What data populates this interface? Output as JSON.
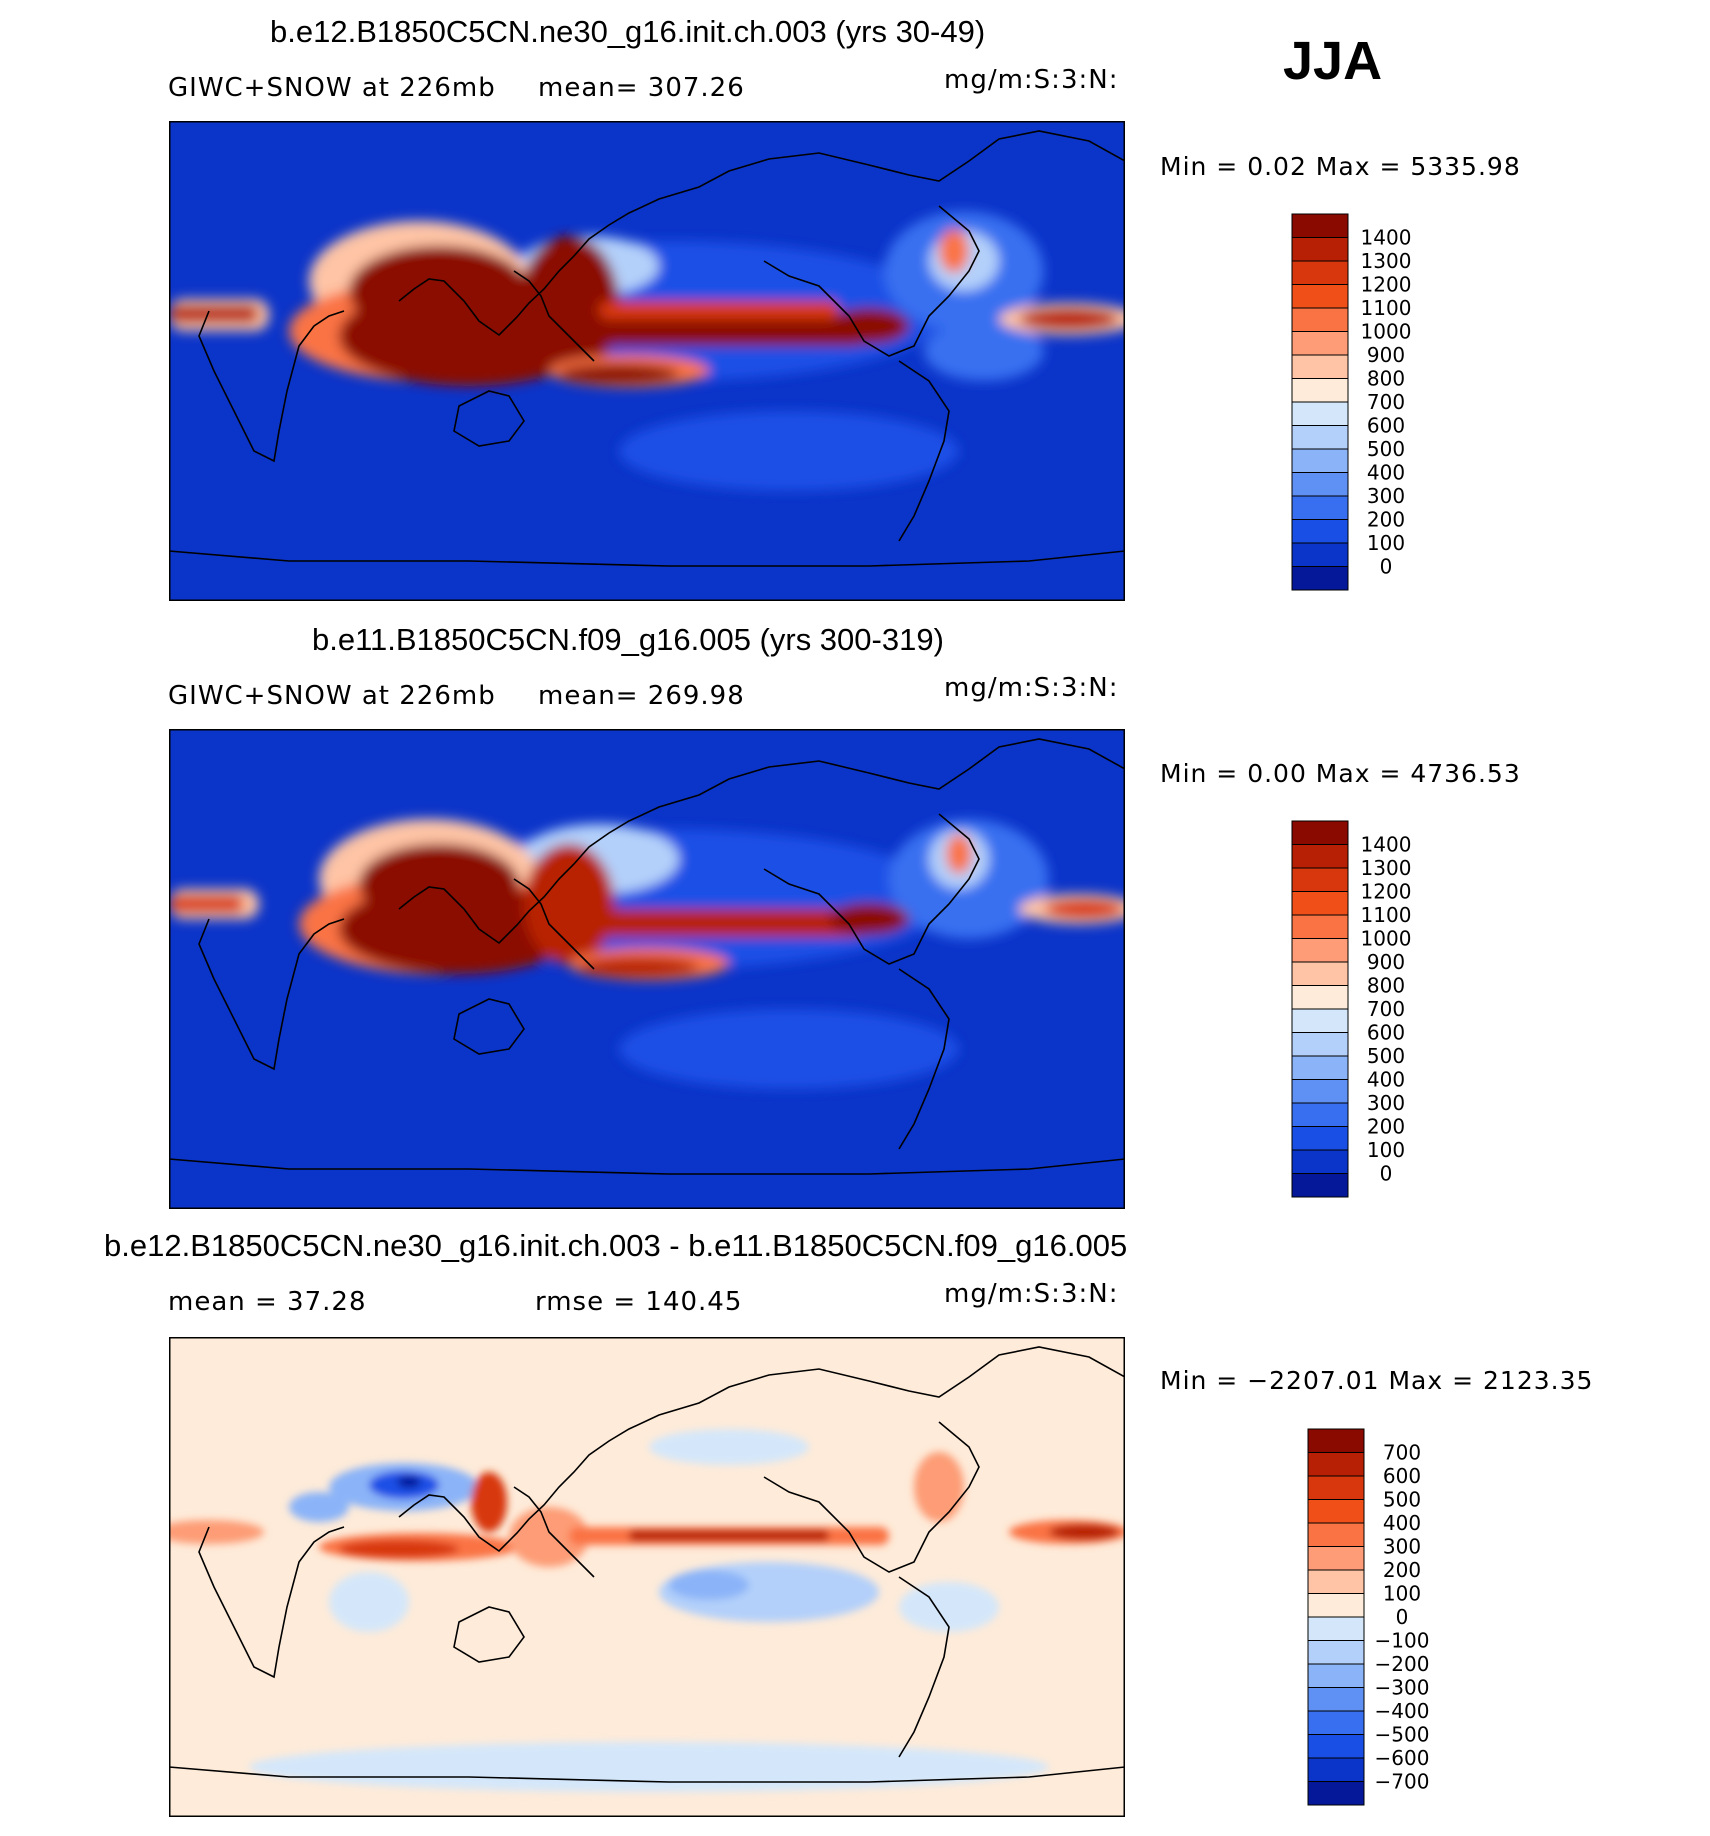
{
  "season": "JJA",
  "panels": [
    {
      "title": "b.e12.B1850C5CN.ne30_g16.init.ch.003 (yrs 30-49)",
      "left_label": "GIWC+SNOW  at  226mb",
      "mid_label": "mean=  307.26",
      "units": "mg/m:S:3:N:",
      "minmax": "Min  =     0.02  Max  =  5335.98",
      "colorbar": {
        "labels": [
          "1400",
          "1300",
          "1200",
          "1100",
          "1000",
          "900",
          "800",
          "700",
          "600",
          "500",
          "400",
          "300",
          "200",
          "100",
          "0"
        ],
        "colors": [
          "#8b0a00",
          "#b82005",
          "#d8370d",
          "#f04f18",
          "#fa7344",
          "#fd9c76",
          "#fec4a5",
          "#feebd9",
          "#d4e7fa",
          "#b3d0fa",
          "#8bb4f8",
          "#5f91f4",
          "#376ff0",
          "#1a4fe6",
          "#0b34c9",
          "#06189a"
        ]
      },
      "colorbar_colors_note": ""
    },
    {
      "title": "b.e11.B1850C5CN.f09_g16.005 (yrs 300-319)",
      "left_label": "GIWC+SNOW  at  226mb",
      "mid_label": "mean=  269.98",
      "units": "mg/m:S:3:N:",
      "minmax": "Min  =     0.00  Max  =  4736.53",
      "colorbar": {
        "labels": [
          "1400",
          "1300",
          "1200",
          "1100",
          "1000",
          "900",
          "800",
          "700",
          "600",
          "500",
          "400",
          "300",
          "200",
          "100",
          "0"
        ],
        "colors": [
          "#8b0a00",
          "#b82005",
          "#d8370d",
          "#f04f18",
          "#fa7344",
          "#fd9c76",
          "#fec4a5",
          "#feebd9",
          "#d4e7fa",
          "#b3d0fa",
          "#8bb4f8",
          "#5f91f4",
          "#376ff0",
          "#1a4fe6",
          "#0b34c9",
          "#06189a"
        ]
      }
    },
    {
      "title": "b.e12.B1850C5CN.ne30_g16.init.ch.003 - b.e11.B1850C5CN.f09_g16.005",
      "left_label": "mean  =    37.28",
      "mid_label": "rmse  =  140.45",
      "units": "mg/m:S:3:N:",
      "minmax": "Min  =  −2207.01  Max  =  2123.35",
      "colorbar": {
        "labels": [
          "700",
          "600",
          "500",
          "400",
          "300",
          "200",
          "100",
          "0",
          "−100",
          "−200",
          "−300",
          "−400",
          "−500",
          "−600",
          "−700"
        ],
        "colors": [
          "#8b0a00",
          "#b82005",
          "#d8370d",
          "#f04f18",
          "#fa7344",
          "#fd9c76",
          "#fec4a5",
          "#feebd9",
          "#d4e7fa",
          "#b3d0fa",
          "#8bb4f8",
          "#5f91f4",
          "#376ff0",
          "#1a4fe6",
          "#0b34c9",
          "#06189a"
        ]
      }
    }
  ]
}
